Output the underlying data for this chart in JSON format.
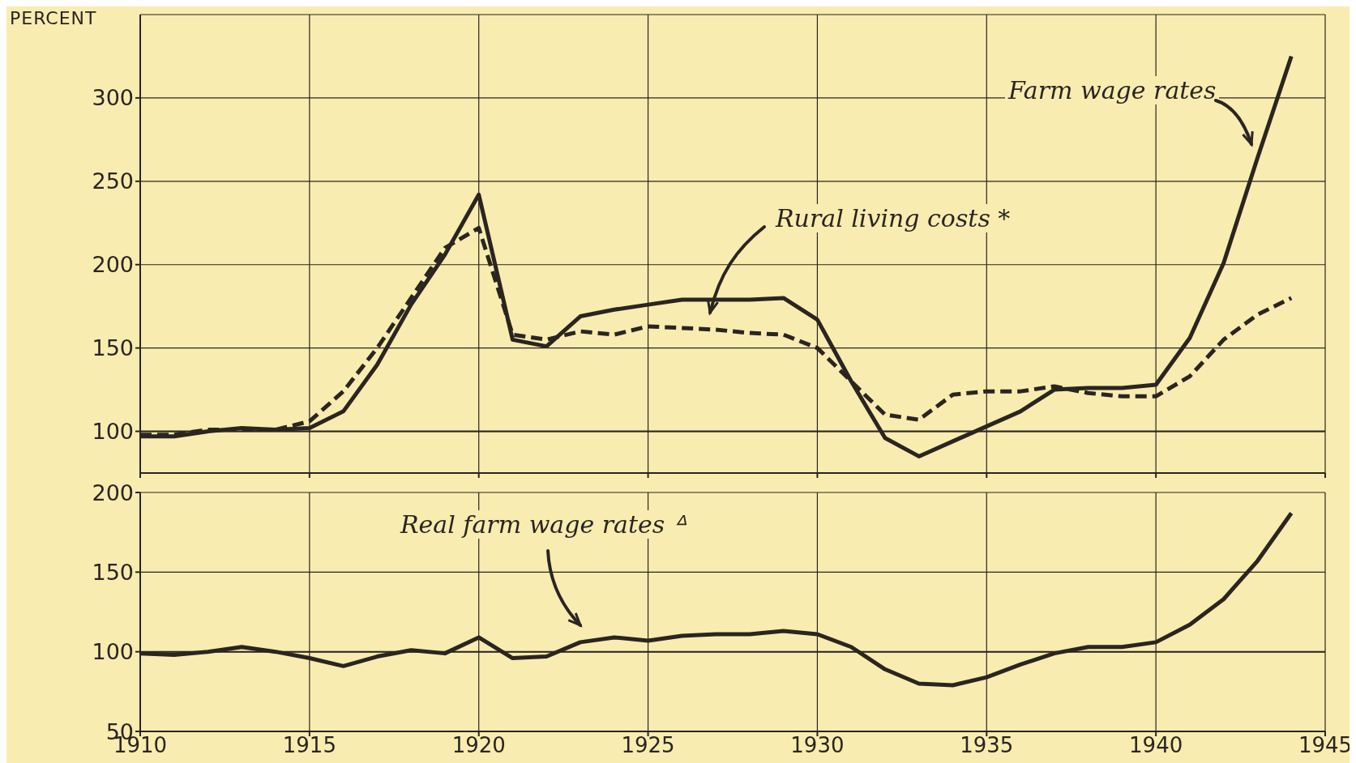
{
  "chart_data": [
    {
      "type": "line",
      "ylabel": "PERCENT",
      "x": [
        1910,
        1911,
        1912,
        1913,
        1914,
        1915,
        1916,
        1917,
        1918,
        1919,
        1920,
        1921,
        1922,
        1923,
        1924,
        1925,
        1926,
        1927,
        1928,
        1929,
        1930,
        1931,
        1932,
        1933,
        1934,
        1935,
        1936,
        1937,
        1938,
        1939,
        1940,
        1941,
        1942,
        1943,
        1944
      ],
      "series": [
        {
          "name": "Farm wage rates",
          "color": "#2a2520",
          "line_style": "solid",
          "values": [
            97,
            97,
            100,
            102,
            101,
            102,
            112,
            140,
            176,
            206,
            242,
            155,
            151,
            169,
            173,
            176,
            179,
            179,
            179,
            180,
            167,
            130,
            96,
            85,
            94,
            103,
            112,
            125,
            126,
            126,
            128,
            156,
            201,
            264,
            325
          ]
        },
        {
          "name": "Rural living costs *",
          "color": "#2a2520",
          "line_style": "dashed",
          "values": [
            98,
            98,
            101,
            101,
            101,
            106,
            124,
            150,
            180,
            210,
            222,
            158,
            155,
            160,
            158,
            163,
            162,
            161,
            159,
            158,
            150,
            130,
            110,
            107,
            122,
            124,
            124,
            127,
            123,
            121,
            121,
            133,
            155,
            170,
            180
          ]
        }
      ],
      "xlim": [
        1910,
        1945
      ],
      "xticks": [
        1910,
        1915,
        1920,
        1925,
        1930,
        1935,
        1940,
        1945
      ],
      "ylim": [
        75,
        350
      ],
      "yticks": [
        100,
        150,
        200,
        250,
        300
      ],
      "tick_labels": "y",
      "grid": true,
      "legend": false,
      "marker": "none",
      "ref_lines": [
        {
          "axis": "y",
          "value": 100,
          "color": "#2a2520"
        }
      ]
    },
    {
      "type": "line",
      "x": [
        1910,
        1911,
        1912,
        1913,
        1914,
        1915,
        1916,
        1917,
        1918,
        1919,
        1920,
        1921,
        1922,
        1923,
        1924,
        1925,
        1926,
        1927,
        1928,
        1929,
        1930,
        1931,
        1932,
        1933,
        1934,
        1935,
        1936,
        1937,
        1938,
        1939,
        1940,
        1941,
        1942,
        1943,
        1944
      ],
      "series": [
        {
          "name": "Real farm wage rates ᐞ",
          "color": "#2a2520",
          "line_style": "solid",
          "values": [
            99,
            98,
            100,
            103,
            100,
            96,
            91,
            97,
            101,
            99,
            109,
            96,
            97,
            106,
            109,
            107,
            110,
            111,
            111,
            113,
            111,
            103,
            89,
            80,
            79,
            84,
            92,
            99,
            103,
            103,
            106,
            117,
            133,
            157,
            187
          ]
        }
      ],
      "xlim": [
        1910,
        1945
      ],
      "xticks": [
        1910,
        1915,
        1920,
        1925,
        1930,
        1935,
        1940,
        1945
      ],
      "ylim": [
        50,
        200
      ],
      "yticks": [
        50,
        100,
        150,
        200
      ],
      "grid": true,
      "legend": false,
      "marker": "none",
      "ref_lines": [
        {
          "axis": "y",
          "value": 100,
          "color": "#2a2520"
        }
      ]
    }
  ]
}
